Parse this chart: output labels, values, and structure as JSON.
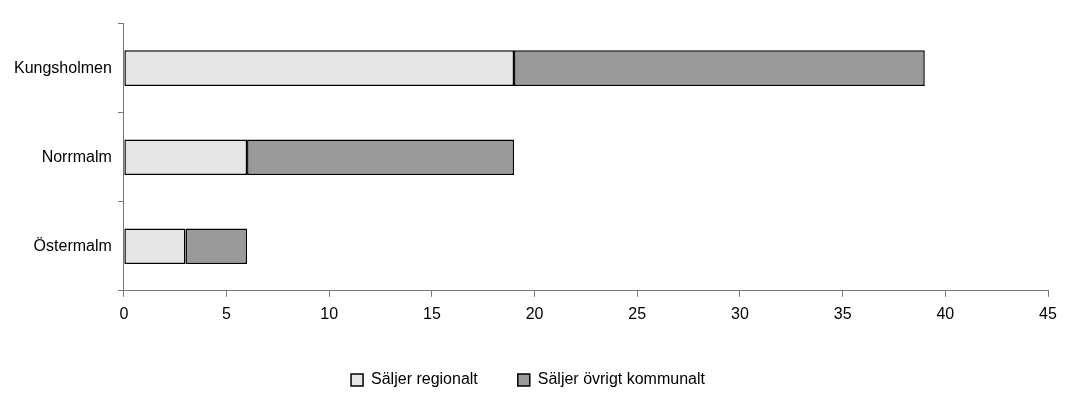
{
  "chart_data": {
    "type": "bar",
    "orientation": "horizontal",
    "stacked": true,
    "categories": [
      "Kungsholmen",
      "Norrmalm",
      "Östermalm"
    ],
    "series": [
      {
        "name": "Säljer regionalt",
        "color": "#e6e6e6",
        "values": [
          19,
          6,
          3
        ]
      },
      {
        "name": "Säljer övrigt kommunalt",
        "color": "#9a9a9a",
        "values": [
          20,
          13,
          3
        ]
      }
    ],
    "xlim": [
      0,
      45
    ],
    "xticks": [
      0,
      5,
      10,
      15,
      20,
      25,
      30,
      35,
      40,
      45
    ],
    "grid": false,
    "legend": "bottom"
  }
}
